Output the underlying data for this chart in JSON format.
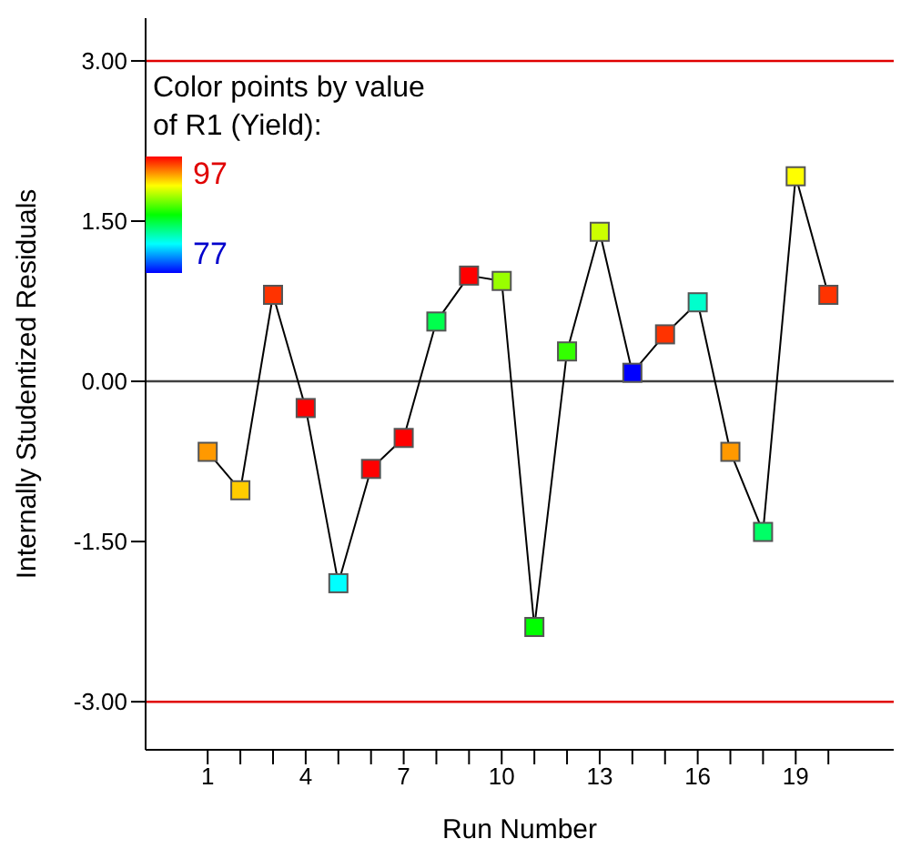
{
  "chart_data": {
    "type": "line",
    "xlabel": "Run Number",
    "ylabel": "Internally Studentized Residuals",
    "clabel": "Color points by value of R1 (Yield):",
    "annotations": [
      "97",
      "77"
    ],
    "x": [
      1,
      2,
      3,
      4,
      5,
      6,
      7,
      8,
      9,
      10,
      11,
      12,
      13,
      14,
      15,
      16,
      17,
      18,
      19,
      20
    ],
    "series": [
      {
        "color": "#000000",
        "values": [
          -0.66,
          -1.02,
          0.81,
          -0.25,
          -1.89,
          -0.82,
          -0.53,
          0.56,
          0.99,
          0.94,
          -2.3,
          0.28,
          1.4,
          0.08,
          0.44,
          0.74,
          -0.66,
          -1.41,
          1.92,
          0.81
        ],
        "colors": [
          "#ff9900",
          "#ffcc00",
          "#ff3300",
          "#ff0000",
          "#00ffff",
          "#ff0000",
          "#ff0000",
          "#00ff4d",
          "#ff0000",
          "#99ff00",
          "#00ff00",
          "#33ff00",
          "#ccff00",
          "#0000ff",
          "#ff3300",
          "#00ffcc",
          "#ff9900",
          "#00ff66",
          "#ffff00",
          "#ff3300"
        ]
      }
    ],
    "xlim": [
      -0.9,
      22
    ],
    "xticks": [
      1,
      {
        "value": 2,
        "label": null
      },
      {
        "value": 3,
        "label": null
      },
      4,
      {
        "value": 5,
        "label": null
      },
      {
        "value": 6,
        "label": null
      },
      7,
      {
        "value": 8,
        "label": null
      },
      {
        "value": 9,
        "label": null
      },
      10,
      {
        "value": 11,
        "label": null
      },
      {
        "value": 12,
        "label": null
      },
      13,
      {
        "value": 14,
        "label": null
      },
      {
        "value": 15,
        "label": null
      },
      16,
      {
        "value": 17,
        "label": null
      },
      {
        "value": 18,
        "label": null
      },
      19,
      {
        "value": 20,
        "label": null
      }
    ],
    "ylim": [
      -3.45,
      3.4
    ],
    "yticks": [
      {
        "value": -3,
        "label": "-3.00"
      },
      {
        "value": -1.5,
        "label": "-1.50"
      },
      {
        "value": 0,
        "label": "0.00"
      },
      {
        "value": 1.5,
        "label": "1.50"
      },
      {
        "value": 3,
        "label": "3.00"
      }
    ],
    "ref_lines": [
      {
        "axis": "y",
        "value": 3,
        "color": "#e00000"
      },
      {
        "axis": "y",
        "value": 0,
        "color": "#404040"
      },
      {
        "axis": "y",
        "value": -3,
        "color": "#e00000"
      }
    ],
    "marker": "square",
    "line_style": "solid",
    "grid": false
  }
}
